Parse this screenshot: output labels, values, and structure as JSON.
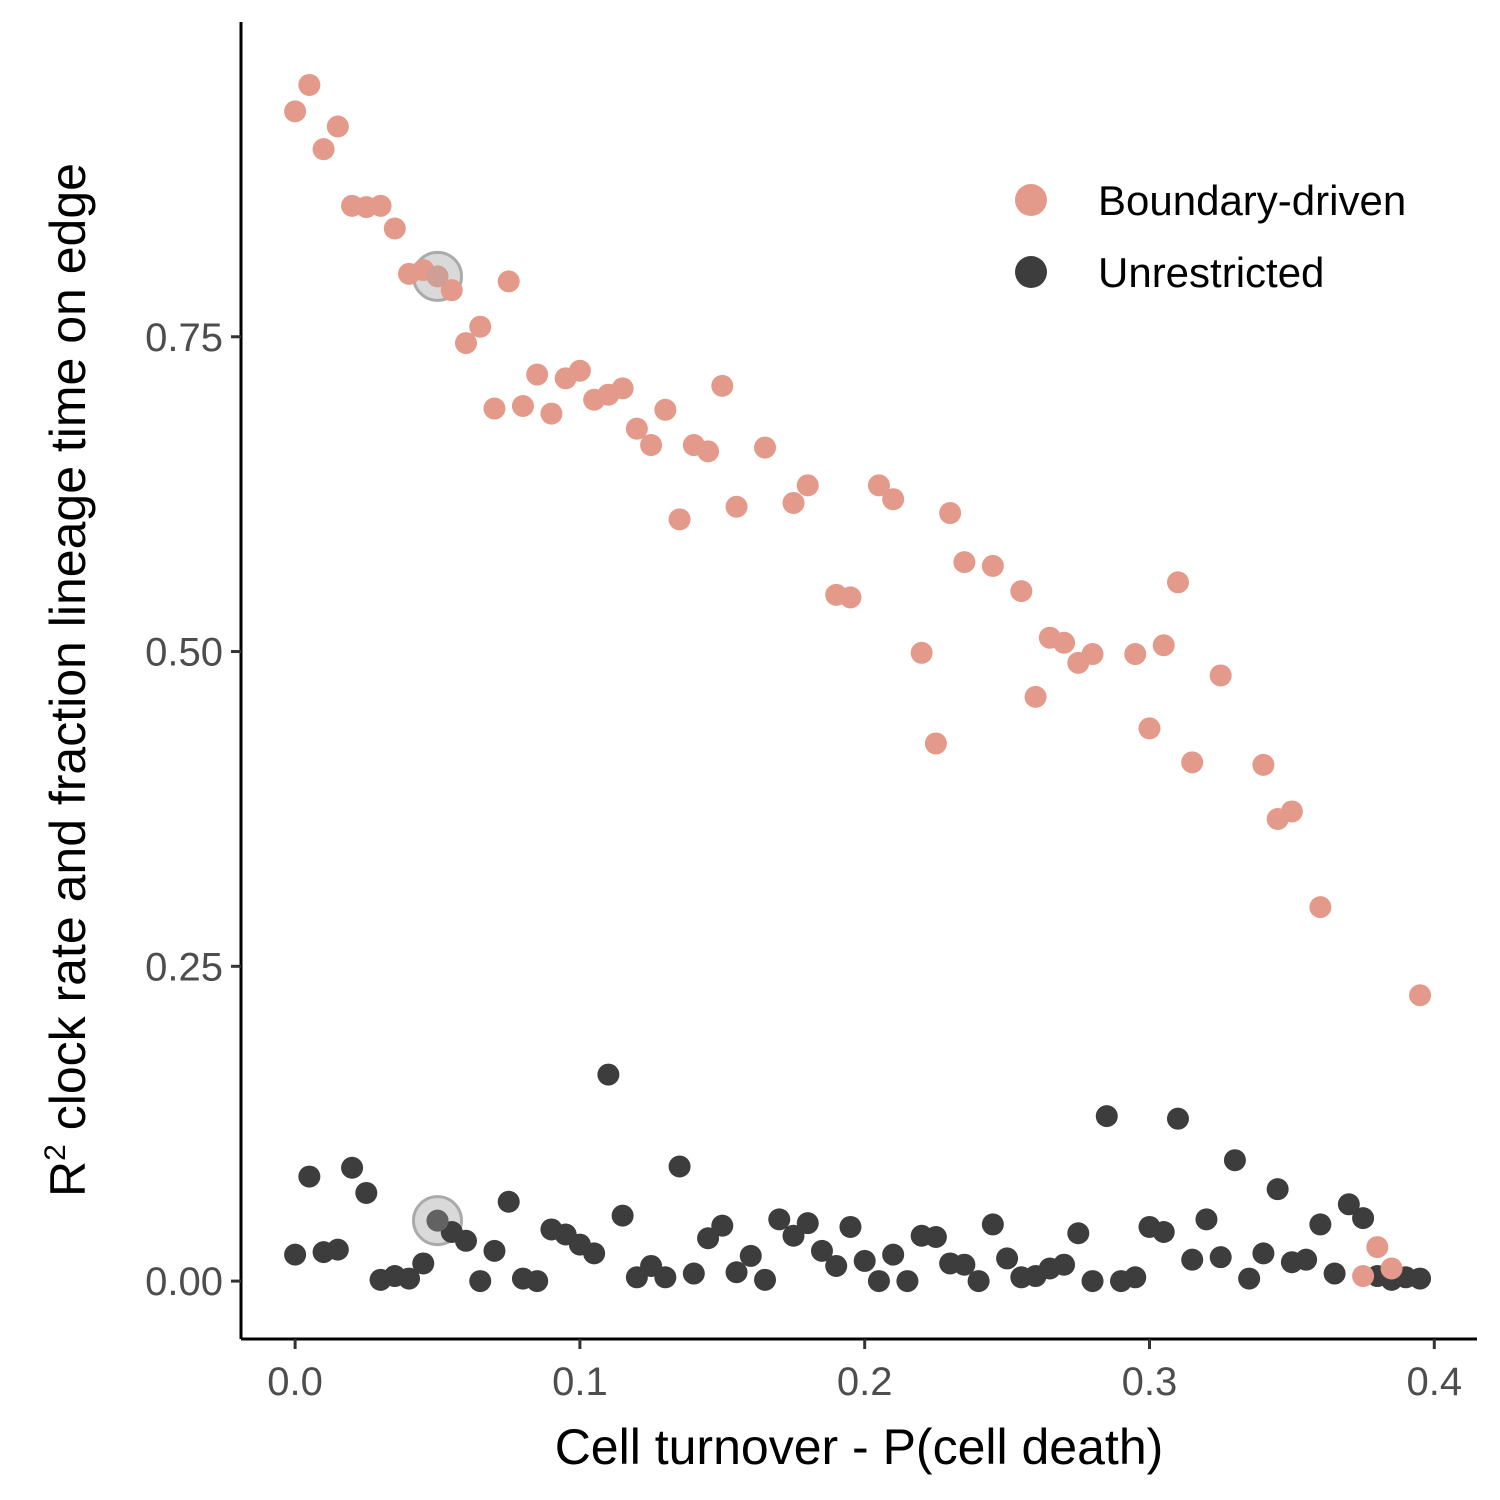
{
  "chart_data": {
    "type": "scatter",
    "xlabel": "Cell turnover - P(cell death)",
    "ylabel_prefix": "R",
    "ylabel_superscript": "2",
    "ylabel_rest": " clock rate and fraction lineage time on edge",
    "xlim": [
      -0.019,
      0.415
    ],
    "ylim": [
      -0.046,
      1.0
    ],
    "x_ticks": [
      0.0,
      0.1,
      0.2,
      0.3,
      0.4
    ],
    "x_tick_labels": [
      "0.0",
      "0.1",
      "0.2",
      "0.3",
      "0.4"
    ],
    "y_ticks": [
      0.0,
      0.25,
      0.5,
      0.75
    ],
    "y_tick_labels": [
      "0.00",
      "0.25",
      "0.50",
      "0.75"
    ],
    "grid": false,
    "legend_position": "top-right",
    "highlight_x": 0.05,
    "highlight_color": "#aaaaaa",
    "series": [
      {
        "name": "Boundary-driven",
        "color": "#e39a8a",
        "points": [
          [
            0.0,
            0.929
          ],
          [
            0.005,
            0.95
          ],
          [
            0.01,
            0.899
          ],
          [
            0.015,
            0.917
          ],
          [
            0.02,
            0.854
          ],
          [
            0.025,
            0.853
          ],
          [
            0.03,
            0.854
          ],
          [
            0.035,
            0.836
          ],
          [
            0.04,
            0.8
          ],
          [
            0.045,
            0.803
          ],
          [
            0.05,
            0.798
          ],
          [
            0.055,
            0.787
          ],
          [
            0.06,
            0.745
          ],
          [
            0.065,
            0.758
          ],
          [
            0.07,
            0.693
          ],
          [
            0.075,
            0.794
          ],
          [
            0.08,
            0.695
          ],
          [
            0.085,
            0.72
          ],
          [
            0.09,
            0.689
          ],
          [
            0.095,
            0.717
          ],
          [
            0.1,
            0.723
          ],
          [
            0.105,
            0.7
          ],
          [
            0.11,
            0.704
          ],
          [
            0.115,
            0.709
          ],
          [
            0.12,
            0.677
          ],
          [
            0.125,
            0.664
          ],
          [
            0.13,
            0.692
          ],
          [
            0.135,
            0.605
          ],
          [
            0.14,
            0.664
          ],
          [
            0.145,
            0.659
          ],
          [
            0.15,
            0.711
          ],
          [
            0.155,
            0.615
          ],
          [
            0.165,
            0.662
          ],
          [
            0.175,
            0.618
          ],
          [
            0.18,
            0.632
          ],
          [
            0.19,
            0.545
          ],
          [
            0.195,
            0.543
          ],
          [
            0.205,
            0.632
          ],
          [
            0.21,
            0.621
          ],
          [
            0.22,
            0.499
          ],
          [
            0.225,
            0.427
          ],
          [
            0.23,
            0.61
          ],
          [
            0.235,
            0.571
          ],
          [
            0.245,
            0.568
          ],
          [
            0.255,
            0.548
          ],
          [
            0.26,
            0.464
          ],
          [
            0.265,
            0.511
          ],
          [
            0.27,
            0.507
          ],
          [
            0.275,
            0.491
          ],
          [
            0.28,
            0.498
          ],
          [
            0.295,
            0.498
          ],
          [
            0.3,
            0.439
          ],
          [
            0.305,
            0.505
          ],
          [
            0.31,
            0.555
          ],
          [
            0.315,
            0.412
          ],
          [
            0.325,
            0.481
          ],
          [
            0.34,
            0.41
          ],
          [
            0.345,
            0.367
          ],
          [
            0.35,
            0.373
          ],
          [
            0.36,
            0.297
          ],
          [
            0.375,
            0.004
          ],
          [
            0.38,
            0.027
          ],
          [
            0.385,
            0.01
          ],
          [
            0.395,
            0.227
          ]
        ]
      },
      {
        "name": "Unrestricted",
        "color": "#3d3d3d",
        "points": [
          [
            0.0,
            0.021
          ],
          [
            0.005,
            0.083
          ],
          [
            0.01,
            0.023
          ],
          [
            0.015,
            0.025
          ],
          [
            0.02,
            0.09
          ],
          [
            0.025,
            0.07
          ],
          [
            0.03,
            0.001
          ],
          [
            0.035,
            0.004
          ],
          [
            0.04,
            0.002
          ],
          [
            0.045,
            0.014
          ],
          [
            0.05,
            0.048
          ],
          [
            0.055,
            0.039
          ],
          [
            0.06,
            0.032
          ],
          [
            0.065,
            0.0
          ],
          [
            0.07,
            0.024
          ],
          [
            0.075,
            0.063
          ],
          [
            0.08,
            0.002
          ],
          [
            0.085,
            0.0
          ],
          [
            0.09,
            0.041
          ],
          [
            0.095,
            0.037
          ],
          [
            0.1,
            0.029
          ],
          [
            0.105,
            0.022
          ],
          [
            0.11,
            0.164
          ],
          [
            0.115,
            0.052
          ],
          [
            0.12,
            0.003
          ],
          [
            0.125,
            0.012
          ],
          [
            0.13,
            0.003
          ],
          [
            0.135,
            0.091
          ],
          [
            0.14,
            0.006
          ],
          [
            0.145,
            0.034
          ],
          [
            0.15,
            0.044
          ],
          [
            0.155,
            0.007
          ],
          [
            0.16,
            0.02
          ],
          [
            0.165,
            0.001
          ],
          [
            0.17,
            0.049
          ],
          [
            0.175,
            0.036
          ],
          [
            0.18,
            0.046
          ],
          [
            0.185,
            0.024
          ],
          [
            0.19,
            0.012
          ],
          [
            0.195,
            0.043
          ],
          [
            0.2,
            0.016
          ],
          [
            0.205,
            0.0
          ],
          [
            0.21,
            0.021
          ],
          [
            0.215,
            0.0
          ],
          [
            0.22,
            0.036
          ],
          [
            0.225,
            0.035
          ],
          [
            0.23,
            0.014
          ],
          [
            0.235,
            0.013
          ],
          [
            0.24,
            0.0
          ],
          [
            0.245,
            0.045
          ],
          [
            0.25,
            0.018
          ],
          [
            0.255,
            0.003
          ],
          [
            0.26,
            0.004
          ],
          [
            0.265,
            0.01
          ],
          [
            0.27,
            0.013
          ],
          [
            0.275,
            0.038
          ],
          [
            0.28,
            0.0
          ],
          [
            0.285,
            0.131
          ],
          [
            0.29,
            0.0
          ],
          [
            0.295,
            0.003
          ],
          [
            0.3,
            0.043
          ],
          [
            0.305,
            0.039
          ],
          [
            0.31,
            0.129
          ],
          [
            0.315,
            0.017
          ],
          [
            0.32,
            0.049
          ],
          [
            0.325,
            0.019
          ],
          [
            0.33,
            0.096
          ],
          [
            0.335,
            0.002
          ],
          [
            0.34,
            0.022
          ],
          [
            0.345,
            0.073
          ],
          [
            0.35,
            0.015
          ],
          [
            0.355,
            0.017
          ],
          [
            0.36,
            0.045
          ],
          [
            0.365,
            0.006
          ],
          [
            0.37,
            0.061
          ],
          [
            0.375,
            0.05
          ],
          [
            0.38,
            0.004
          ],
          [
            0.385,
            0.001
          ],
          [
            0.39,
            0.003
          ],
          [
            0.395,
            0.002
          ]
        ]
      }
    ]
  }
}
